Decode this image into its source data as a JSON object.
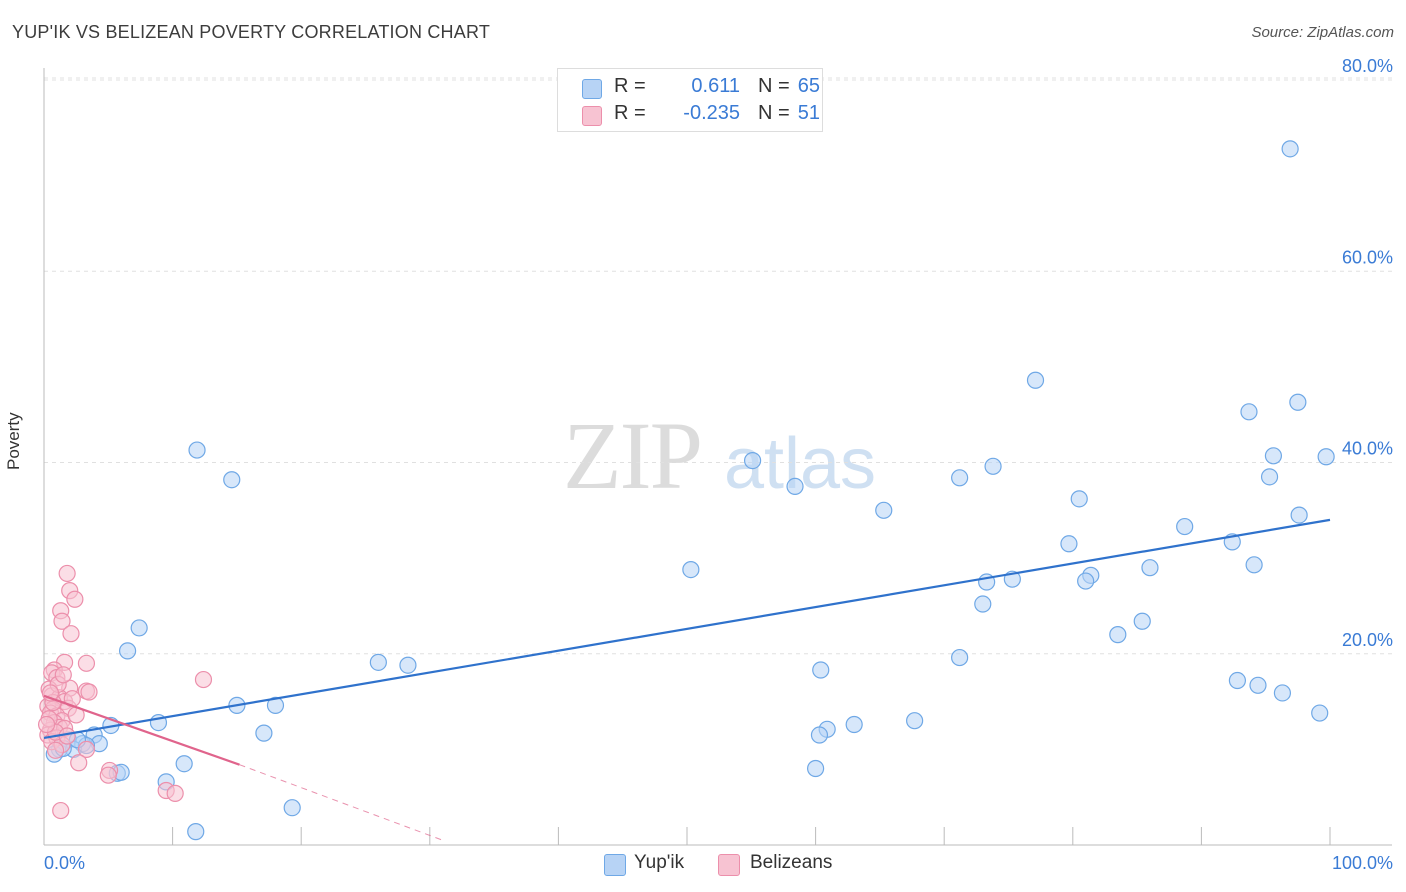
{
  "title": "YUP'IK VS BELIZEAN POVERTY CORRELATION CHART",
  "source": "Source: ZipAtlas.com",
  "watermark": {
    "zip": "ZIP",
    "atlas": "atlas"
  },
  "legend": {
    "rows": [
      {
        "r_label": "R =",
        "r_value": "0.611",
        "n_label": "N =",
        "n_value": "65",
        "color": "#6fa8e6",
        "fill": "#b7d3f5"
      },
      {
        "r_label": "R =",
        "r_value": "-0.235",
        "n_label": "N =",
        "n_value": "51",
        "color": "#ec8fab",
        "fill": "#f7c3d2"
      }
    ]
  },
  "bottom_legend": {
    "yupik": "Yup'ik",
    "belizeans": "Belizeans"
  },
  "chart_data": {
    "type": "scatter",
    "title": "YUP'IK VS BELIZEAN POVERTY CORRELATION CHART",
    "xlabel": "",
    "ylabel": "Poverty",
    "xlim": [
      0,
      100
    ],
    "ylim": [
      0,
      80
    ],
    "x_tick_labels": [
      "0.0%",
      "100.0%"
    ],
    "y_ticks": [
      20,
      40,
      60,
      80
    ],
    "y_tick_labels": [
      "20.0%",
      "40.0%",
      "60.0%",
      "80.0%"
    ],
    "grid": true,
    "series": [
      {
        "name": "Yup'ik",
        "color": "#6fa8e6",
        "fill": "#b7d3f5",
        "R": 0.611,
        "N": 65,
        "trend": {
          "x": [
            0,
            100
          ],
          "y": [
            11.2,
            34.0
          ],
          "color": "#2f72cc"
        },
        "points": [
          [
            96.9,
            72.8
          ],
          [
            77.1,
            48.6
          ],
          [
            97.5,
            46.3
          ],
          [
            93.7,
            45.3
          ],
          [
            11.9,
            41.3
          ],
          [
            99.7,
            40.6
          ],
          [
            95.6,
            40.7
          ],
          [
            55.1,
            40.2
          ],
          [
            73.8,
            39.6
          ],
          [
            14.6,
            38.2
          ],
          [
            95.3,
            38.5
          ],
          [
            71.2,
            38.4
          ],
          [
            58.4,
            37.5
          ],
          [
            80.5,
            36.2
          ],
          [
            65.3,
            35.0
          ],
          [
            97.6,
            34.5
          ],
          [
            88.7,
            33.3
          ],
          [
            92.4,
            31.7
          ],
          [
            79.7,
            31.5
          ],
          [
            94.1,
            29.3
          ],
          [
            50.3,
            28.8
          ],
          [
            86.0,
            29.0
          ],
          [
            81.4,
            28.2
          ],
          [
            81.0,
            27.6
          ],
          [
            75.3,
            27.8
          ],
          [
            73.3,
            27.5
          ],
          [
            73.0,
            25.2
          ],
          [
            85.4,
            23.4
          ],
          [
            83.5,
            22.0
          ],
          [
            7.4,
            22.7
          ],
          [
            6.5,
            20.3
          ],
          [
            26.0,
            19.1
          ],
          [
            28.3,
            18.8
          ],
          [
            71.2,
            19.6
          ],
          [
            60.4,
            18.3
          ],
          [
            92.8,
            17.2
          ],
          [
            94.4,
            16.7
          ],
          [
            96.3,
            15.9
          ],
          [
            15.0,
            14.6
          ],
          [
            18.0,
            14.6
          ],
          [
            99.2,
            13.8
          ],
          [
            8.9,
            12.8
          ],
          [
            67.7,
            13.0
          ],
          [
            5.2,
            12.5
          ],
          [
            63.0,
            12.6
          ],
          [
            60.9,
            12.1
          ],
          [
            17.1,
            11.7
          ],
          [
            60.3,
            11.5
          ],
          [
            3.9,
            11.5
          ],
          [
            1.9,
            11.0
          ],
          [
            3.0,
            10.6
          ],
          [
            1.2,
            10.0
          ],
          [
            4.3,
            10.6
          ],
          [
            2.3,
            10.0
          ],
          [
            0.8,
            9.5
          ],
          [
            10.9,
            8.5
          ],
          [
            9.5,
            6.6
          ],
          [
            5.7,
            7.5
          ],
          [
            6.0,
            7.6
          ],
          [
            60.0,
            8.0
          ],
          [
            19.3,
            3.9
          ],
          [
            11.8,
            1.4
          ],
          [
            3.3,
            10.4
          ],
          [
            2.6,
            11.0
          ],
          [
            1.5,
            10.1
          ]
        ]
      },
      {
        "name": "Belizeans",
        "color": "#ec8fab",
        "fill": "#f7c3d2",
        "R": -0.235,
        "N": 51,
        "trend": {
          "x": [
            0,
            15.2
          ],
          "y": [
            15.6,
            8.4
          ],
          "dashed_to": [
            31.0,
            0.5
          ],
          "color": "#e0648c"
        },
        "points": [
          [
            1.8,
            28.4
          ],
          [
            2.0,
            26.6
          ],
          [
            2.4,
            25.7
          ],
          [
            1.3,
            24.5
          ],
          [
            1.4,
            23.4
          ],
          [
            2.1,
            22.1
          ],
          [
            1.6,
            19.1
          ],
          [
            3.3,
            19.0
          ],
          [
            0.8,
            18.3
          ],
          [
            0.6,
            18.0
          ],
          [
            1.0,
            17.5
          ],
          [
            12.4,
            17.3
          ],
          [
            2.0,
            16.4
          ],
          [
            3.3,
            16.1
          ],
          [
            3.5,
            16.0
          ],
          [
            0.4,
            16.3
          ],
          [
            0.6,
            15.6
          ],
          [
            1.2,
            15.4
          ],
          [
            1.6,
            15.0
          ],
          [
            0.3,
            14.5
          ],
          [
            0.7,
            14.2
          ],
          [
            1.9,
            14.3
          ],
          [
            0.5,
            13.8
          ],
          [
            1.0,
            13.5
          ],
          [
            1.4,
            13.0
          ],
          [
            0.8,
            12.8
          ],
          [
            1.2,
            12.3
          ],
          [
            0.5,
            12.0
          ],
          [
            1.6,
            12.2
          ],
          [
            0.3,
            11.5
          ],
          [
            1.0,
            11.2
          ],
          [
            0.6,
            10.8
          ],
          [
            1.4,
            10.5
          ],
          [
            3.3,
            10.0
          ],
          [
            2.7,
            8.6
          ],
          [
            5.1,
            7.8
          ],
          [
            5.0,
            7.3
          ],
          [
            9.5,
            5.7
          ],
          [
            10.2,
            5.4
          ],
          [
            1.3,
            3.6
          ],
          [
            0.9,
            11.8
          ],
          [
            0.4,
            13.2
          ],
          [
            0.7,
            14.9
          ],
          [
            1.1,
            16.8
          ],
          [
            1.5,
            17.8
          ],
          [
            2.2,
            15.3
          ],
          [
            0.2,
            12.6
          ],
          [
            0.9,
            9.9
          ],
          [
            1.8,
            11.4
          ],
          [
            2.5,
            13.6
          ],
          [
            0.5,
            15.9
          ]
        ]
      }
    ]
  }
}
